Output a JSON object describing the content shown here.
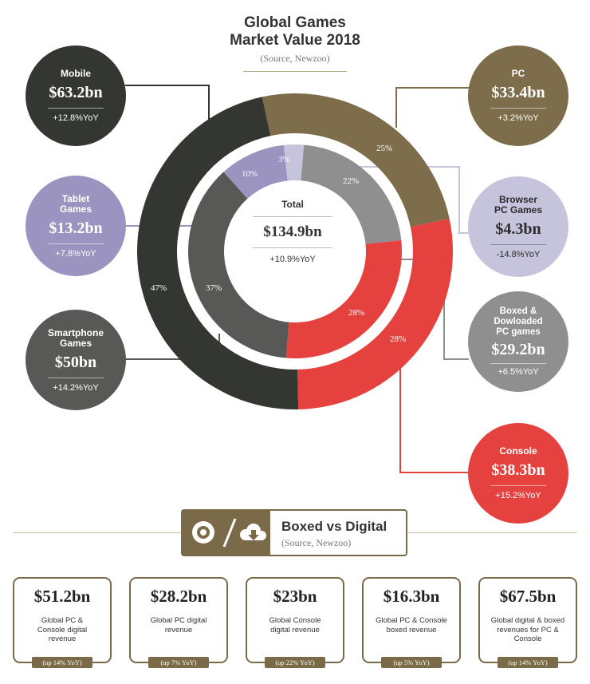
{
  "title": "Global Games Market Value 2018",
  "title_line1": "Global Games",
  "title_line2": "Market Value 2018",
  "source": "(Source, Newzoo)",
  "colors": {
    "mobile": "#343632",
    "tablet": "#9b93c0",
    "smartphone": "#585856",
    "pc": "#7e6d4a",
    "browser": "#c6c3dd",
    "boxed": "#8f8f8f",
    "console": "#e5413f",
    "accent": "#7a6a47"
  },
  "total": {
    "label": "Total",
    "value": "$134.9bn",
    "yoy": "+10.9%YoY"
  },
  "segments": {
    "mobile": {
      "name": "Mobile",
      "value": "$63.2bn",
      "yoy": "+12.8%YoY"
    },
    "tablet": {
      "name": "Tablet Games",
      "value": "$13.2bn",
      "yoy": "+7.8%YoY"
    },
    "smartphone": {
      "name": "Smartphone Games",
      "value": "$50bn",
      "yoy": "+14.2%YoY"
    },
    "pc": {
      "name": "PC",
      "value": "$33.4bn",
      "yoy": "+3.2%YoY"
    },
    "browser": {
      "name": "Browser PC Games",
      "value": "$4.3bn",
      "yoy": "-14.8%YoY"
    },
    "boxed": {
      "name": "Boxed & Dowloaded PC games",
      "value": "$29.2bn",
      "yoy": "+6.5%YoY"
    },
    "console": {
      "name": "Console",
      "value": "$38.3bn",
      "yoy": "+15.2%YoY"
    }
  },
  "chart_data": {
    "type": "pie",
    "title": "Global Games Market Value 2018",
    "rings": [
      {
        "ring": "outer",
        "slices": [
          {
            "name": "PC",
            "value": 25,
            "label": "25%"
          },
          {
            "name": "Console",
            "value": 28,
            "label": "28%"
          },
          {
            "name": "Mobile",
            "value": 47,
            "label": "47%"
          }
        ]
      },
      {
        "ring": "inner",
        "slices": [
          {
            "name": "Browser PC Games",
            "value": 3,
            "label": "3%"
          },
          {
            "name": "Boxed & Dowloaded PC games",
            "value": 22,
            "label": "22%"
          },
          {
            "name": "Console",
            "value": 28,
            "label": "28%"
          },
          {
            "name": "Smartphone Games",
            "value": 37,
            "label": "37%"
          },
          {
            "name": "Tablet Games",
            "value": 10,
            "label": "10%"
          }
        ]
      }
    ]
  },
  "boxed_vs_digital": {
    "heading": "Boxed vs Digital",
    "source": "(Source, Newzoo)",
    "cards": [
      {
        "value": "$51.2bn",
        "desc": "Global PC & Console digital revenue",
        "up": "(up 14% YoY)"
      },
      {
        "value": "$28.2bn",
        "desc": "Global PC digital revenue",
        "up": "(up 7% YoY)"
      },
      {
        "value": "$23bn",
        "desc": "Global Console digital revenue",
        "up": "(up 22% YoY)"
      },
      {
        "value": "$16.3bn",
        "desc": "Global PC & Console boxed revenue",
        "up": "(up 5% YoY)"
      },
      {
        "value": "$67.5bn",
        "desc": "Global digital & boxed revenues for PC & Console",
        "up": "(up 14% YoY)"
      }
    ]
  }
}
